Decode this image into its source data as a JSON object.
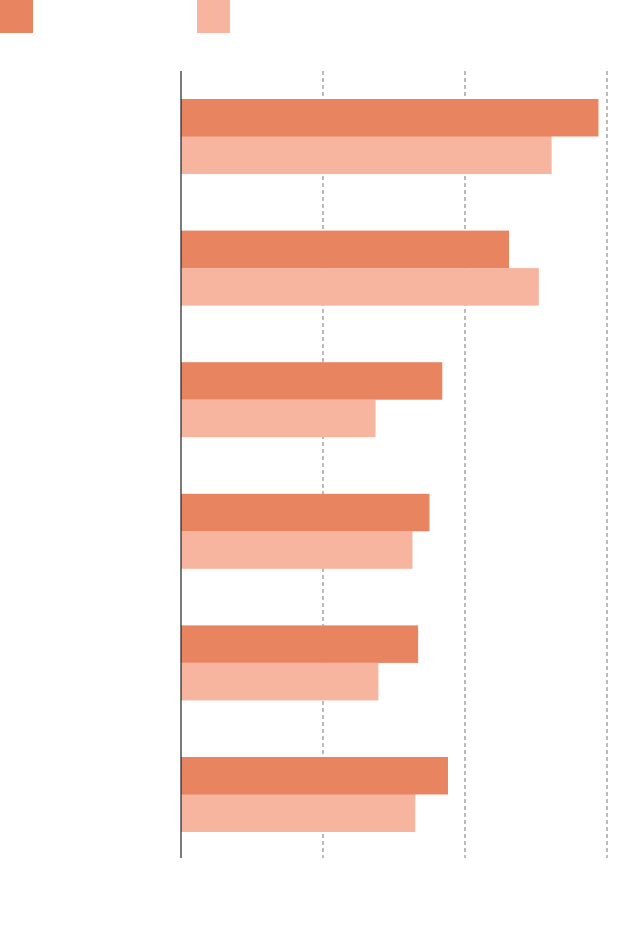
{
  "chart_data": {
    "type": "bar",
    "orientation": "horizontal",
    "categories": [
      "",
      "",
      "",
      "",
      "",
      ""
    ],
    "series": [
      {
        "name": "",
        "color": "#E8845F",
        "values": [
          29.4,
          23.1,
          18.4,
          17.5,
          16.7,
          18.8
        ]
      },
      {
        "name": "",
        "color": "#F7B5A0",
        "values": [
          26.1,
          25.2,
          13.7,
          16.3,
          13.9,
          16.5
        ]
      }
    ],
    "xlim": [
      0,
      30
    ],
    "gridlines_at": [
      10,
      20,
      30
    ],
    "grid": true,
    "grid_style": "dashed",
    "legend": "top-left",
    "title": "",
    "xlabel": "",
    "ylabel": ""
  }
}
